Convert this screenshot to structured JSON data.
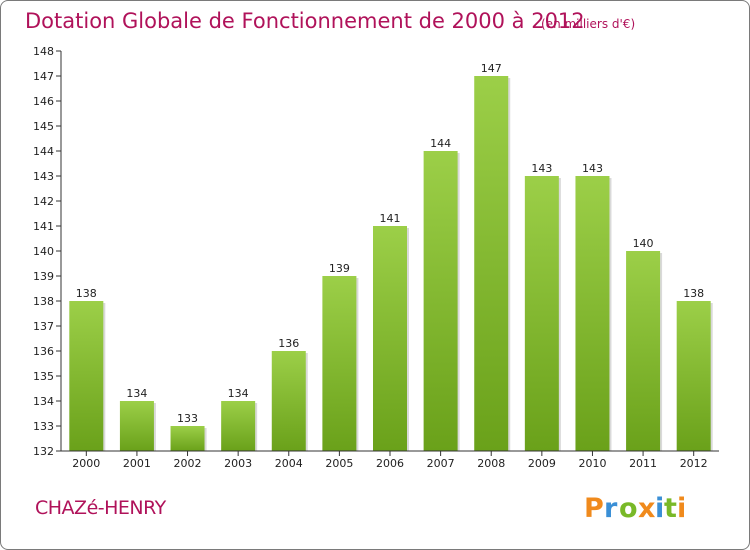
{
  "chart_data": {
    "type": "bar",
    "title": "Dotation Globale de Fonctionnement de 2000 à 2012",
    "subtitle": "(en milliers d'€)",
    "categories": [
      "2000",
      "2001",
      "2002",
      "2003",
      "2004",
      "2005",
      "2006",
      "2007",
      "2008",
      "2009",
      "2010",
      "2011",
      "2012"
    ],
    "values": [
      138,
      134,
      133,
      134,
      136,
      139,
      141,
      144,
      147,
      143,
      143,
      140,
      138
    ],
    "xlabel": "",
    "ylabel": "",
    "ylim": [
      132,
      148
    ],
    "yticks": [
      "132",
      "133",
      "134",
      "135",
      "136",
      "137",
      "138",
      "139",
      "140",
      "141",
      "142",
      "143",
      "144",
      "145",
      "146",
      "147",
      "148"
    ],
    "grid": false,
    "bar_color_top": "#9ccf48",
    "bar_color_bottom": "#6aa11a"
  },
  "footer": {
    "place": "CHAZé-HENRY",
    "logo": "Proxiti",
    "logo_colors": [
      "#f08a1c",
      "#3a8fd6",
      "#79b928",
      "#f08a1c",
      "#3a8fd6",
      "#79b928",
      "#f08a1c"
    ]
  },
  "colors": {
    "title": "#b0125a",
    "axis": "#333333"
  }
}
